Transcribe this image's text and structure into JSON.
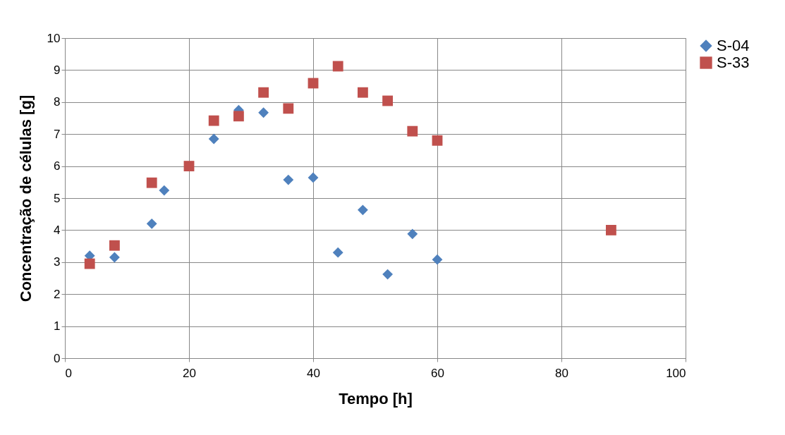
{
  "chart_data": {
    "type": "scatter",
    "xlabel": "Tempo [h]",
    "ylabel": "Concentração de células [g]",
    "xlim": [
      0,
      100
    ],
    "xticks": [
      0,
      20,
      40,
      60,
      80,
      100
    ],
    "ylim": [
      0,
      10
    ],
    "yticks": [
      0,
      1,
      2,
      3,
      4,
      5,
      6,
      7,
      8,
      9,
      10
    ],
    "grid": true,
    "legend": "right",
    "series": [
      {
        "name": "S-04",
        "color": "#4f81bd",
        "marker": "diamond",
        "x": [
          4,
          8,
          14,
          16,
          24,
          28,
          32,
          36,
          40,
          44,
          48,
          52,
          56,
          60
        ],
        "values": [
          3.2,
          3.15,
          4.2,
          5.24,
          6.85,
          7.75,
          7.67,
          5.57,
          5.64,
          3.3,
          4.63,
          2.62,
          3.88,
          3.08
        ]
      },
      {
        "name": "S-33",
        "color": "#c0504d",
        "marker": "square",
        "x": [
          4,
          8,
          14,
          20,
          24,
          28,
          32,
          36,
          40,
          44,
          48,
          52,
          56,
          60,
          88
        ],
        "values": [
          2.95,
          3.52,
          5.48,
          6.0,
          7.42,
          7.56,
          8.3,
          7.8,
          8.59,
          9.12,
          8.3,
          8.04,
          7.09,
          6.8,
          4.0
        ]
      }
    ]
  }
}
